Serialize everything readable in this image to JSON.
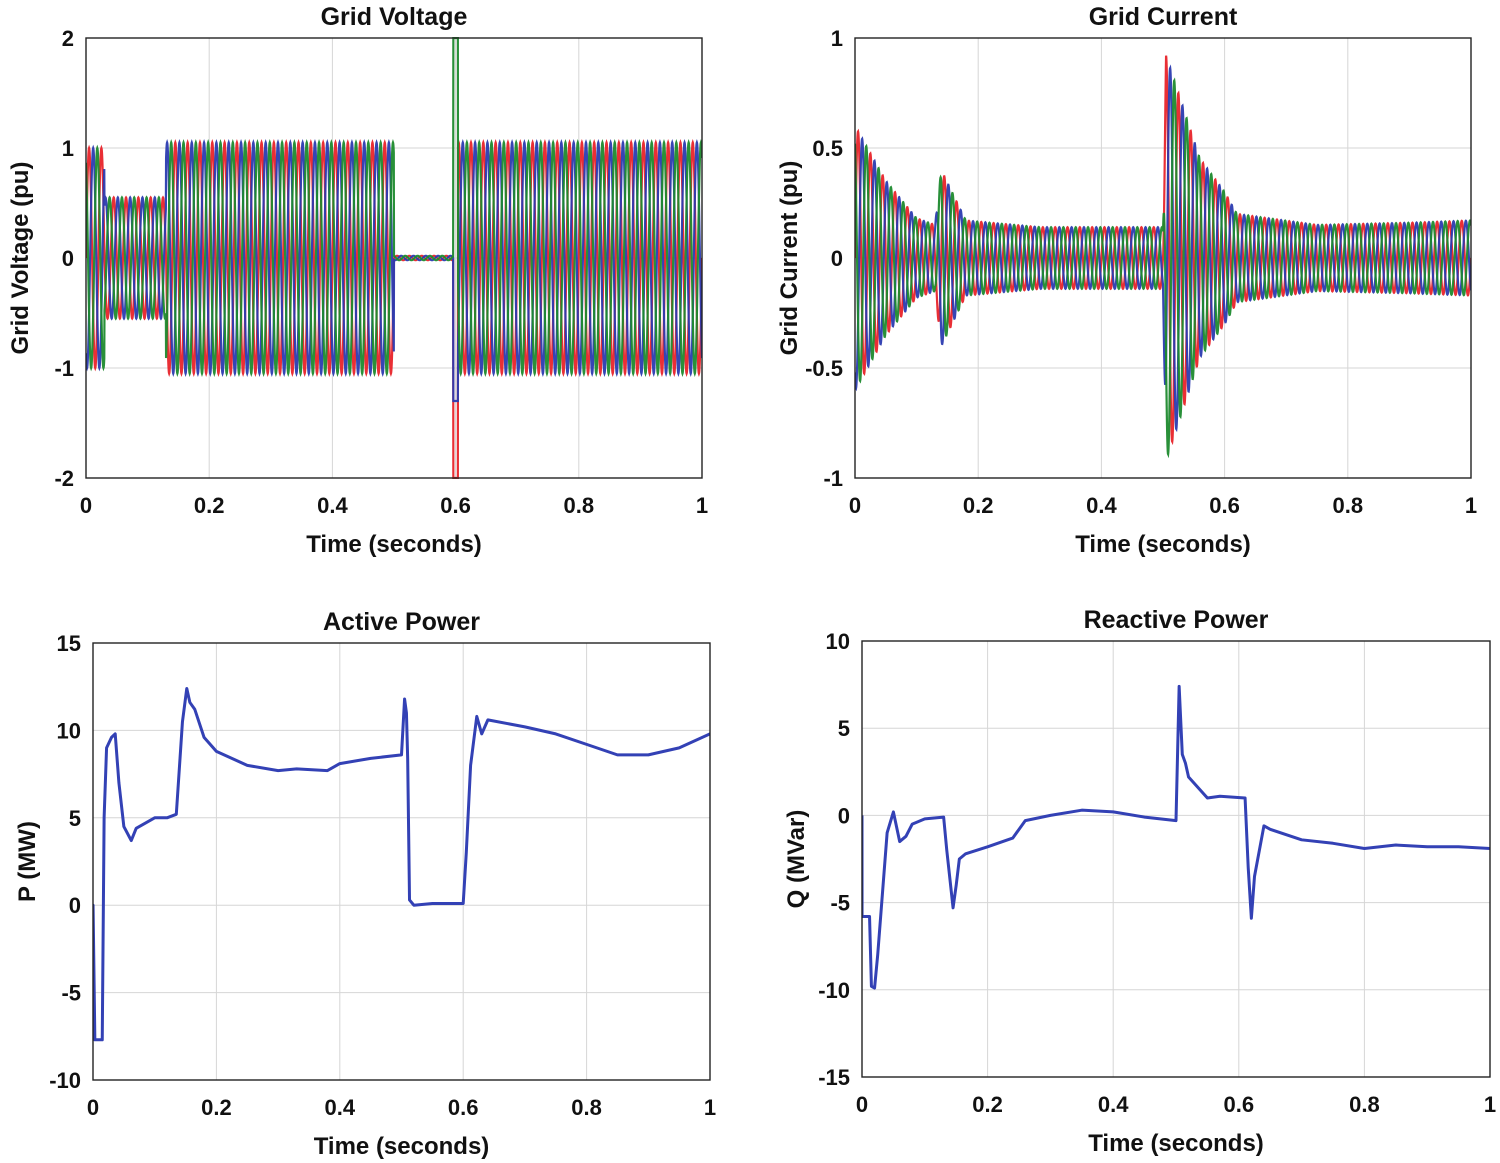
{
  "colors": {
    "phase_a": "#e8242a",
    "phase_b": "#2b3bb0",
    "phase_c": "#1e8a2e",
    "line": "#3341b5"
  },
  "chart_data": [
    {
      "type": "line",
      "title": "Grid Voltage",
      "xlabel": "Time (seconds)",
      "ylabel": "Grid Voltage (pu)",
      "xlim": [
        0,
        1
      ],
      "ylim": [
        -2,
        2
      ],
      "xticks": [
        "0",
        "0.2",
        "0.4",
        "0.6",
        "0.8",
        "1"
      ],
      "yticks": [
        "2",
        "1",
        "0",
        "-1",
        "-2"
      ],
      "grid": true,
      "signal": "three-phase sinusoid, 50 Hz",
      "series": [
        {
          "color": "#e8242a",
          "phase_deg": 0
        },
        {
          "color": "#2b3bb0",
          "phase_deg": -120
        },
        {
          "color": "#1e8a2e",
          "phase_deg": 120
        }
      ],
      "envelope": [
        {
          "t_start": 0,
          "t_end": 0.03,
          "amplitude": 1.0
        },
        {
          "t_start": 0.03,
          "t_end": 0.13,
          "amplitude": 0.55
        },
        {
          "t_start": 0.13,
          "t_end": 0.5,
          "amplitude": 1.05
        },
        {
          "t_start": 0.5,
          "t_end": 0.6,
          "amplitude": 0.02
        },
        {
          "t_start": 0.6,
          "t_end": 1.0,
          "amplitude": 1.05
        }
      ],
      "transients": [
        {
          "t": 0.6,
          "peak_high": 2.0,
          "peak_low": -2.0
        }
      ]
    },
    {
      "type": "line",
      "title": "Grid Current",
      "xlabel": "Time (seconds)",
      "ylabel": "Grid Current (pu)",
      "xlim": [
        0,
        1
      ],
      "ylim": [
        -1,
        1
      ],
      "xticks": [
        "0",
        "0.2",
        "0.4",
        "0.6",
        "0.8",
        "1"
      ],
      "yticks": [
        "1",
        "0.5",
        "0",
        "-0.5",
        "-1"
      ],
      "grid": true,
      "signal": "three-phase sinusoid, 50 Hz",
      "series": [
        {
          "color": "#e8242a",
          "phase_deg": 0
        },
        {
          "color": "#2b3bb0",
          "phase_deg": -120
        },
        {
          "color": "#1e8a2e",
          "phase_deg": 120
        }
      ],
      "envelope_points": [
        [
          0.0,
          0.6
        ],
        [
          0.05,
          0.35
        ],
        [
          0.1,
          0.18
        ],
        [
          0.13,
          0.15
        ],
        [
          0.14,
          0.4
        ],
        [
          0.18,
          0.17
        ],
        [
          0.3,
          0.14
        ],
        [
          0.5,
          0.14
        ],
        [
          0.505,
          0.92
        ],
        [
          0.56,
          0.45
        ],
        [
          0.6,
          0.3
        ],
        [
          0.62,
          0.2
        ],
        [
          0.75,
          0.15
        ],
        [
          0.9,
          0.16
        ],
        [
          1.0,
          0.17
        ]
      ]
    },
    {
      "type": "line",
      "title": "Active Power",
      "xlabel": "Time (seconds)",
      "ylabel": "P (MW)",
      "xlim": [
        0,
        1
      ],
      "ylim": [
        -10,
        15
      ],
      "xticks": [
        "0",
        "0.2",
        "0.4",
        "0.6",
        "0.8",
        "1"
      ],
      "yticks": [
        "15",
        "10",
        "5",
        "0",
        "-5",
        "-10"
      ],
      "grid": true,
      "series": [
        {
          "color": "#3341b5",
          "x": [
            0,
            0.0001,
            0.003,
            0.015,
            0.018,
            0.022,
            0.03,
            0.036,
            0.042,
            0.05,
            0.062,
            0.07,
            0.1,
            0.12,
            0.135,
            0.145,
            0.152,
            0.157,
            0.165,
            0.18,
            0.2,
            0.25,
            0.3,
            0.33,
            0.38,
            0.4,
            0.45,
            0.5,
            0.505,
            0.508,
            0.51,
            0.513,
            0.52,
            0.55,
            0.6,
            0.605,
            0.612,
            0.622,
            0.63,
            0.64,
            0.7,
            0.75,
            0.8,
            0.85,
            0.9,
            0.95,
            1.0
          ],
          "y": [
            -7.7,
            0,
            -7.7,
            -7.7,
            5,
            9,
            9.6,
            9.8,
            7,
            4.5,
            3.7,
            4.4,
            5.0,
            5.0,
            5.2,
            10.5,
            12.4,
            11.6,
            11.2,
            9.6,
            8.8,
            8.0,
            7.7,
            7.8,
            7.7,
            8.1,
            8.4,
            8.6,
            11.8,
            11.0,
            8.4,
            0.3,
            0.0,
            0.1,
            0.1,
            3,
            8,
            10.8,
            9.8,
            10.6,
            10.2,
            9.8,
            9.2,
            8.6,
            8.6,
            9.0,
            9.8
          ]
        }
      ]
    },
    {
      "type": "line",
      "title": "Reactive Power",
      "xlabel": "Time (seconds)",
      "ylabel": "Q (MVar)",
      "xlim": [
        0,
        1
      ],
      "ylim": [
        -15,
        10
      ],
      "xticks": [
        "0",
        "0.2",
        "0.4",
        "0.6",
        "0.8",
        "1"
      ],
      "yticks": [
        "10",
        "5",
        "0",
        "-5",
        "-10",
        "-15"
      ],
      "grid": true,
      "series": [
        {
          "color": "#3341b5",
          "x": [
            0,
            0.0001,
            0.012,
            0.015,
            0.02,
            0.025,
            0.04,
            0.05,
            0.06,
            0.07,
            0.08,
            0.1,
            0.13,
            0.135,
            0.145,
            0.15,
            0.155,
            0.165,
            0.2,
            0.24,
            0.26,
            0.3,
            0.35,
            0.4,
            0.45,
            0.5,
            0.505,
            0.51,
            0.515,
            0.52,
            0.55,
            0.57,
            0.61,
            0.615,
            0.62,
            0.625,
            0.64,
            0.65,
            0.7,
            0.75,
            0.8,
            0.85,
            0.9,
            0.95,
            1.0
          ],
          "y": [
            0,
            -5.8,
            -5.8,
            -9.8,
            -9.9,
            -8,
            -1,
            0.2,
            -1.5,
            -1.2,
            -0.5,
            -0.2,
            -0.1,
            -2,
            -5.3,
            -4,
            -2.5,
            -2.2,
            -1.8,
            -1.3,
            -0.3,
            0.0,
            0.3,
            0.2,
            -0.1,
            -0.3,
            7.4,
            3.5,
            3.0,
            2.2,
            1.0,
            1.1,
            1.0,
            -3,
            -5.9,
            -3.5,
            -0.6,
            -0.8,
            -1.4,
            -1.6,
            -1.9,
            -1.7,
            -1.8,
            -1.8,
            -1.9
          ]
        }
      ]
    }
  ]
}
